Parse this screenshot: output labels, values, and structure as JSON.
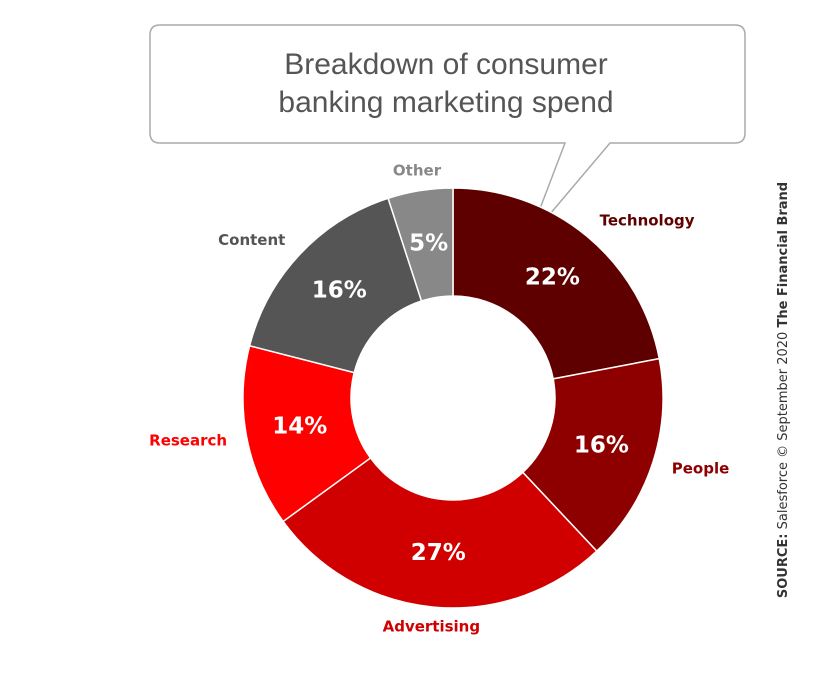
{
  "chart_data": {
    "type": "donut",
    "title": [
      "Breakdown of consumer",
      "banking marketing spend"
    ],
    "categories": [
      "Technology",
      "People",
      "Advertising",
      "Research",
      "Content",
      "Other"
    ],
    "values": [
      22,
      16,
      27,
      14,
      16,
      5
    ],
    "value_labels": [
      "22%",
      "16%",
      "27%",
      "14%",
      "16%",
      "5%"
    ],
    "colors": [
      "#5e0000",
      "#8e0000",
      "#d10000",
      "#ff0000",
      "#555555",
      "#888888"
    ],
    "source_label": "SOURCE:",
    "source": "Salesforce © September 2020",
    "brand": "The Financial Brand"
  }
}
